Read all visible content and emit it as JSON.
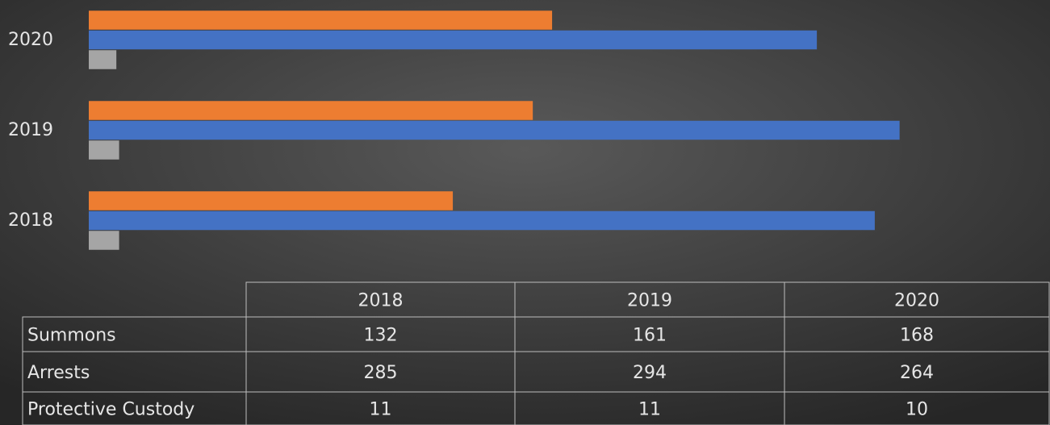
{
  "chart_data": {
    "type": "bar",
    "orientation": "horizontal",
    "categories": [
      "2018",
      "2019",
      "2020"
    ],
    "series": [
      {
        "name": "Summons",
        "color": "#ed7d31",
        "values": [
          132,
          161,
          168
        ]
      },
      {
        "name": "Arrests",
        "color": "#4472c4",
        "values": [
          285,
          294,
          264
        ]
      },
      {
        "name": "Protective Custody",
        "color": "#a5a5a5",
        "values": [
          11,
          11,
          10
        ]
      }
    ],
    "xlim": [
      0,
      350
    ]
  }
}
